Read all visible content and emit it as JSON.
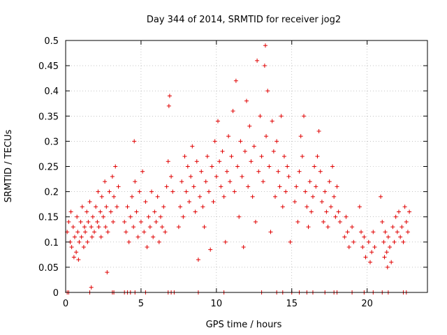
{
  "chart_data": {
    "type": "scatter",
    "title": "Day 344 of 2014, SRMTID for receiver jog2",
    "xlabel": "GPS time / hours",
    "ylabel": "SRMTID / TECUs",
    "xlim": [
      0,
      24
    ],
    "ylim": [
      0,
      0.5
    ],
    "x_ticks": [
      0,
      5,
      10,
      15,
      20
    ],
    "x_tick_labels": [
      "0",
      "5",
      "10",
      "15",
      "20"
    ],
    "y_ticks": [
      0,
      0.05,
      0.1,
      0.15,
      0.2,
      0.25,
      0.3,
      0.35,
      0.4,
      0.45,
      0.5
    ],
    "y_tick_labels": [
      "0",
      "0.05",
      "0.1",
      "0.15",
      "0.2",
      "0.25",
      "0.3",
      "0.35",
      "0.4",
      "0.45",
      "0.5"
    ],
    "grid": true,
    "marker": "plus",
    "color": "#e00000",
    "series": [
      {
        "name": "SRMTID",
        "points": [
          [
            0.1,
            0.12
          ],
          [
            0.2,
            0.14
          ],
          [
            0.3,
            0.1
          ],
          [
            0.35,
            0.16
          ],
          [
            0.4,
            0.09
          ],
          [
            0.5,
            0.13
          ],
          [
            0.55,
            0.07
          ],
          [
            0.6,
            0.11
          ],
          [
            0.7,
            0.08
          ],
          [
            0.75,
            0.15
          ],
          [
            0.8,
            0.12
          ],
          [
            0.85,
            0.065
          ],
          [
            0.9,
            0.1
          ],
          [
            1.0,
            0.14
          ],
          [
            1.05,
            0.11
          ],
          [
            1.1,
            0.17
          ],
          [
            1.2,
            0.09
          ],
          [
            1.25,
            0.13
          ],
          [
            1.3,
            0.12
          ],
          [
            1.4,
            0.16
          ],
          [
            1.45,
            0.1
          ],
          [
            1.5,
            0.14
          ],
          [
            1.6,
            0.18
          ],
          [
            1.7,
            0.13
          ],
          [
            1.75,
            0.11
          ],
          [
            1.8,
            0.15
          ],
          [
            1.9,
            0.12
          ],
          [
            2.0,
            0.17
          ],
          [
            2.1,
            0.14
          ],
          [
            2.15,
            0.2
          ],
          [
            2.2,
            0.13
          ],
          [
            2.3,
            0.16
          ],
          [
            2.35,
            0.11
          ],
          [
            2.4,
            0.19
          ],
          [
            2.5,
            0.15
          ],
          [
            2.6,
            0.22
          ],
          [
            2.65,
            0.13
          ],
          [
            2.7,
            0.17
          ],
          [
            2.75,
            0.04
          ],
          [
            2.8,
            0.12
          ],
          [
            2.9,
            0.2
          ],
          [
            3.0,
            0.16
          ],
          [
            3.1,
            0.23
          ],
          [
            3.15,
            0.14
          ],
          [
            3.2,
            0.19
          ],
          [
            3.3,
            0.25
          ],
          [
            3.4,
            0.17
          ],
          [
            3.5,
            0.21
          ],
          [
            3.9,
            0.14
          ],
          [
            4.0,
            0.12
          ],
          [
            4.1,
            0.17
          ],
          [
            4.2,
            0.1
          ],
          [
            4.3,
            0.15
          ],
          [
            4.4,
            0.19
          ],
          [
            4.5,
            0.13
          ],
          [
            4.55,
            0.3
          ],
          [
            4.6,
            0.22
          ],
          [
            4.7,
            0.16
          ],
          [
            4.8,
            0.11
          ],
          [
            4.9,
            0.2
          ],
          [
            5.0,
            0.14
          ],
          [
            5.1,
            0.24
          ],
          [
            5.2,
            0.12
          ],
          [
            5.3,
            0.18
          ],
          [
            5.4,
            0.09
          ],
          [
            5.5,
            0.15
          ],
          [
            5.6,
            0.13
          ],
          [
            5.7,
            0.2
          ],
          [
            5.8,
            0.11
          ],
          [
            5.9,
            0.16
          ],
          [
            6.0,
            0.14
          ],
          [
            6.1,
            0.19
          ],
          [
            6.2,
            0.1
          ],
          [
            6.3,
            0.15
          ],
          [
            6.4,
            0.13
          ],
          [
            6.5,
            0.17
          ],
          [
            6.6,
            0.12
          ],
          [
            6.7,
            0.21
          ],
          [
            6.8,
            0.26
          ],
          [
            6.85,
            0.37
          ],
          [
            6.9,
            0.39
          ],
          [
            7.0,
            0.23
          ],
          [
            7.1,
            0.2
          ],
          [
            7.5,
            0.13
          ],
          [
            7.6,
            0.17
          ],
          [
            7.7,
            0.22
          ],
          [
            7.8,
            0.15
          ],
          [
            7.9,
            0.27
          ],
          [
            8.0,
            0.2
          ],
          [
            8.1,
            0.25
          ],
          [
            8.2,
            0.18
          ],
          [
            8.3,
            0.23
          ],
          [
            8.4,
            0.29
          ],
          [
            8.5,
            0.21
          ],
          [
            8.6,
            0.16
          ],
          [
            8.7,
            0.26
          ],
          [
            8.8,
            0.065
          ],
          [
            8.9,
            0.19
          ],
          [
            9.0,
            0.24
          ],
          [
            9.1,
            0.17
          ],
          [
            9.2,
            0.13
          ],
          [
            9.3,
            0.22
          ],
          [
            9.4,
            0.27
          ],
          [
            9.5,
            0.2
          ],
          [
            9.6,
            0.085
          ],
          [
            9.7,
            0.25
          ],
          [
            9.8,
            0.18
          ],
          [
            9.9,
            0.3
          ],
          [
            10.0,
            0.23
          ],
          [
            10.1,
            0.34
          ],
          [
            10.2,
            0.26
          ],
          [
            10.3,
            0.21
          ],
          [
            10.4,
            0.28
          ],
          [
            10.5,
            0.19
          ],
          [
            10.6,
            0.1
          ],
          [
            10.7,
            0.24
          ],
          [
            10.8,
            0.31
          ],
          [
            10.9,
            0.22
          ],
          [
            11.0,
            0.27
          ],
          [
            11.1,
            0.36
          ],
          [
            11.2,
            0.2
          ],
          [
            11.3,
            0.42
          ],
          [
            11.4,
            0.25
          ],
          [
            11.5,
            0.15
          ],
          [
            11.6,
            0.3
          ],
          [
            11.7,
            0.23
          ],
          [
            11.8,
            0.09
          ],
          [
            11.9,
            0.28
          ],
          [
            12.0,
            0.38
          ],
          [
            12.1,
            0.21
          ],
          [
            12.2,
            0.33
          ],
          [
            12.3,
            0.26
          ],
          [
            12.4,
            0.19
          ],
          [
            12.5,
            0.29
          ],
          [
            12.6,
            0.14
          ],
          [
            12.7,
            0.46
          ],
          [
            12.8,
            0.24
          ],
          [
            12.9,
            0.35
          ],
          [
            13.0,
            0.27
          ],
          [
            13.1,
            0.22
          ],
          [
            13.2,
            0.45
          ],
          [
            13.25,
            0.49
          ],
          [
            13.3,
            0.31
          ],
          [
            13.4,
            0.4
          ],
          [
            13.5,
            0.25
          ],
          [
            13.6,
            0.12
          ],
          [
            13.7,
            0.34
          ],
          [
            13.8,
            0.28
          ],
          [
            13.9,
            0.19
          ],
          [
            14.0,
            0.3
          ],
          [
            14.1,
            0.24
          ],
          [
            14.2,
            0.21
          ],
          [
            14.3,
            0.35
          ],
          [
            14.4,
            0.17
          ],
          [
            14.5,
            0.27
          ],
          [
            14.6,
            0.2
          ],
          [
            14.7,
            0.25
          ],
          [
            14.8,
            0.23
          ],
          [
            14.9,
            0.1
          ],
          [
            15.2,
            0.18
          ],
          [
            15.3,
            0.21
          ],
          [
            15.4,
            0.14
          ],
          [
            15.5,
            0.24
          ],
          [
            15.6,
            0.31
          ],
          [
            15.7,
            0.27
          ],
          [
            15.8,
            0.35
          ],
          [
            15.9,
            0.2
          ],
          [
            16.0,
            0.17
          ],
          [
            16.1,
            0.13
          ],
          [
            16.2,
            0.22
          ],
          [
            16.3,
            0.16
          ],
          [
            16.4,
            0.19
          ],
          [
            16.5,
            0.25
          ],
          [
            16.6,
            0.21
          ],
          [
            16.7,
            0.27
          ],
          [
            16.8,
            0.32
          ],
          [
            16.9,
            0.24
          ],
          [
            17.0,
            0.18
          ],
          [
            17.1,
            0.14
          ],
          [
            17.2,
            0.2
          ],
          [
            17.3,
            0.16
          ],
          [
            17.4,
            0.13
          ],
          [
            17.5,
            0.22
          ],
          [
            17.6,
            0.17
          ],
          [
            17.7,
            0.25
          ],
          [
            17.8,
            0.19
          ],
          [
            17.9,
            0.15
          ],
          [
            18.0,
            0.21
          ],
          [
            18.1,
            0.16
          ],
          [
            18.2,
            0.14
          ],
          [
            18.5,
            0.11
          ],
          [
            18.6,
            0.15
          ],
          [
            18.7,
            0.12
          ],
          [
            18.8,
            0.09
          ],
          [
            19.0,
            0.13
          ],
          [
            19.1,
            0.1
          ],
          [
            19.5,
            0.17
          ],
          [
            19.6,
            0.12
          ],
          [
            19.7,
            0.09
          ],
          [
            19.8,
            0.11
          ],
          [
            19.9,
            0.07
          ],
          [
            20.1,
            0.1
          ],
          [
            20.2,
            0.06
          ],
          [
            20.3,
            0.08
          ],
          [
            20.4,
            0.12
          ],
          [
            20.5,
            0.09
          ],
          [
            20.9,
            0.19
          ],
          [
            21.0,
            0.14
          ],
          [
            21.1,
            0.1
          ],
          [
            21.15,
            0.07
          ],
          [
            21.2,
            0.12
          ],
          [
            21.3,
            0.08
          ],
          [
            21.35,
            0.05
          ],
          [
            21.4,
            0.11
          ],
          [
            21.5,
            0.09
          ],
          [
            21.6,
            0.06
          ],
          [
            21.7,
            0.13
          ],
          [
            21.8,
            0.1
          ],
          [
            21.9,
            0.15
          ],
          [
            22.0,
            0.12
          ],
          [
            22.1,
            0.16
          ],
          [
            22.2,
            0.11
          ],
          [
            22.3,
            0.13
          ],
          [
            22.4,
            0.1
          ],
          [
            22.5,
            0.17
          ],
          [
            22.6,
            0.14
          ],
          [
            22.7,
            0.12
          ],
          [
            22.8,
            0.16
          ],
          [
            0.1,
            0
          ],
          [
            0.2,
            0
          ],
          [
            1.6,
            0
          ],
          [
            1.7,
            0.01
          ],
          [
            3.1,
            0
          ],
          [
            3.2,
            0
          ],
          [
            3.9,
            0
          ],
          [
            4.1,
            0
          ],
          [
            4.3,
            0
          ],
          [
            4.6,
            0
          ],
          [
            5.3,
            0
          ],
          [
            6.8,
            0
          ],
          [
            7.0,
            0
          ],
          [
            7.2,
            0
          ],
          [
            8.8,
            0
          ],
          [
            10.5,
            0
          ],
          [
            13.0,
            0
          ],
          [
            14.0,
            0
          ],
          [
            14.4,
            0
          ],
          [
            15.0,
            0
          ],
          [
            15.5,
            0
          ],
          [
            16.0,
            0
          ],
          [
            16.4,
            0
          ],
          [
            17.2,
            0
          ],
          [
            17.8,
            0
          ],
          [
            18.0,
            0
          ],
          [
            19.0,
            0
          ],
          [
            19.8,
            0
          ],
          [
            20.4,
            0
          ],
          [
            21.0,
            0
          ],
          [
            21.4,
            0
          ],
          [
            22.4,
            0
          ],
          [
            22.6,
            0
          ]
        ]
      }
    ]
  }
}
